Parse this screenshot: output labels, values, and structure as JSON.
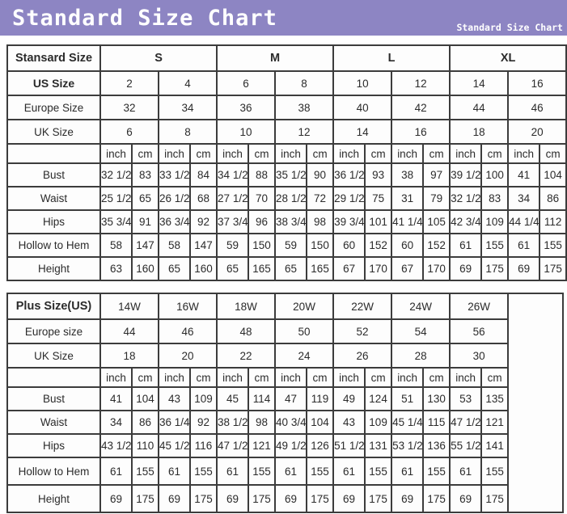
{
  "banner": {
    "title": "Standard Size Chart",
    "subtitle": "Standard Size Chart",
    "bg_color": "#8d85c3",
    "text_color": "#ffffff"
  },
  "tables": [
    {
      "name": "standard-size-table",
      "corner_label": "Stansard Size",
      "size_groups": [
        "S",
        "M",
        "L",
        "XL"
      ],
      "size_rows": [
        {
          "label": "US Size",
          "bold": true,
          "values": [
            "2",
            "4",
            "6",
            "8",
            "10",
            "12",
            "14",
            "16"
          ]
        },
        {
          "label": "Europe Size",
          "bold": false,
          "values": [
            "32",
            "34",
            "36",
            "38",
            "40",
            "42",
            "44",
            "46"
          ]
        },
        {
          "label": "UK Size",
          "bold": false,
          "values": [
            "6",
            "8",
            "10",
            "12",
            "14",
            "16",
            "18",
            "20"
          ]
        }
      ],
      "units": [
        "inch",
        "cm"
      ],
      "measurement_rows": [
        {
          "label": "Bust",
          "values": [
            "32 1/2",
            "83",
            "33 1/2",
            "84",
            "34 1/2",
            "88",
            "35 1/2",
            "90",
            "36 1/2",
            "93",
            "38",
            "97",
            "39 1/2",
            "100",
            "41",
            "104"
          ]
        },
        {
          "label": "Waist",
          "values": [
            "25 1/2",
            "65",
            "26 1/2",
            "68",
            "27 1/2",
            "70",
            "28 1/2",
            "72",
            "29 1/2",
            "75",
            "31",
            "79",
            "32 1/2",
            "83",
            "34",
            "86"
          ]
        },
        {
          "label": "Hips",
          "values": [
            "35 3/4",
            "91",
            "36 3/4",
            "92",
            "37 3/4",
            "96",
            "38 3/4",
            "98",
            "39 3/4",
            "101",
            "41 1/4",
            "105",
            "42 3/4",
            "109",
            "44 1/4",
            "112"
          ]
        },
        {
          "label": "Hollow to Hem",
          "values": [
            "58",
            "147",
            "58",
            "147",
            "59",
            "150",
            "59",
            "150",
            "60",
            "152",
            "60",
            "152",
            "61",
            "155",
            "61",
            "155"
          ]
        },
        {
          "label": "Height",
          "values": [
            "63",
            "160",
            "65",
            "160",
            "65",
            "165",
            "65",
            "165",
            "67",
            "170",
            "67",
            "170",
            "69",
            "175",
            "69",
            "175"
          ]
        }
      ],
      "has_trailing_blank_column": false
    },
    {
      "name": "plus-size-table",
      "corner_label": "Plus Size(US)",
      "size_groups": [
        "14W",
        "16W",
        "18W",
        "20W",
        "22W",
        "24W",
        "26W"
      ],
      "size_rows": [
        {
          "label": "Europe size",
          "bold": false,
          "values": [
            "44",
            "46",
            "48",
            "50",
            "52",
            "54",
            "56"
          ]
        },
        {
          "label": "UK Size",
          "bold": false,
          "values": [
            "18",
            "20",
            "22",
            "24",
            "26",
            "28",
            "30"
          ]
        }
      ],
      "units": [
        "inch",
        "cm"
      ],
      "measurement_rows": [
        {
          "label": "Bust",
          "values": [
            "41",
            "104",
            "43",
            "109",
            "45",
            "114",
            "47",
            "119",
            "49",
            "124",
            "51",
            "130",
            "53",
            "135"
          ]
        },
        {
          "label": "Waist",
          "values": [
            "34",
            "86",
            "36 1/4",
            "92",
            "38 1/2",
            "98",
            "40 3/4",
            "104",
            "43",
            "109",
            "45 1/4",
            "115",
            "47 1/2",
            "121"
          ]
        },
        {
          "label": "Hips",
          "values": [
            "43 1/2",
            "110",
            "45 1/2",
            "116",
            "47 1/2",
            "121",
            "49 1/2",
            "126",
            "51 1/2",
            "131",
            "53 1/2",
            "136",
            "55 1/2",
            "141"
          ]
        },
        {
          "label": "Hollow to Hem",
          "values": [
            "61",
            "155",
            "61",
            "155",
            "61",
            "155",
            "61",
            "155",
            "61",
            "155",
            "61",
            "155",
            "61",
            "155"
          ]
        },
        {
          "label": "Height",
          "values": [
            "69",
            "175",
            "69",
            "175",
            "69",
            "175",
            "69",
            "175",
            "69",
            "175",
            "69",
            "175",
            "69",
            "175"
          ]
        }
      ],
      "has_trailing_blank_column": true
    }
  ]
}
